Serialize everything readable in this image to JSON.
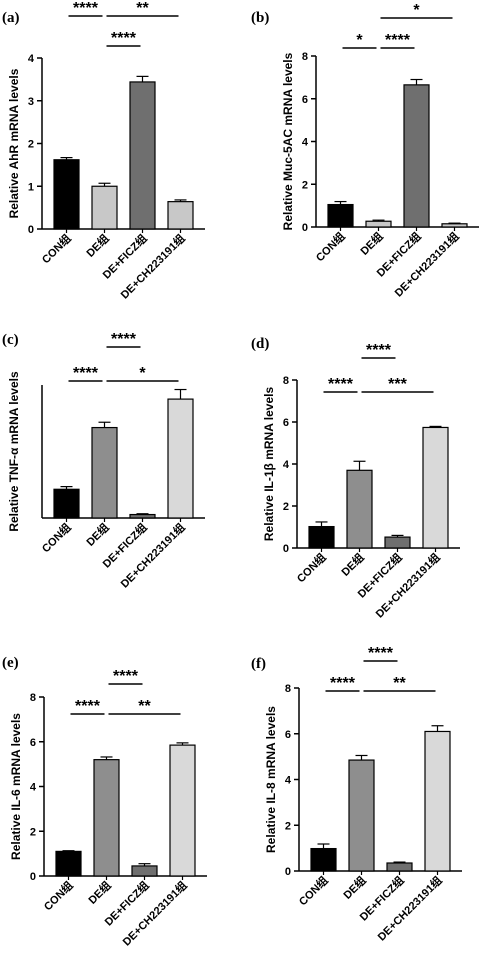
{
  "chart_data": [
    {
      "panel": "(a)",
      "type": "bar",
      "ylabel": "Relative AhR mRNA levels",
      "categories": [
        "CON组",
        "DE组",
        "DE+FICZ组",
        "DE+CH223191组"
      ],
      "values": [
        1.62,
        1.0,
        3.44,
        0.64
      ],
      "errors": [
        0.05,
        0.07,
        0.13,
        0.04
      ],
      "colors": [
        "#000000",
        "#c8c8c8",
        "#6f6f6f",
        "#c8c8c8"
      ],
      "ylim": [
        0,
        4
      ],
      "yticks": [
        "0",
        "1",
        "2",
        "3",
        "4"
      ],
      "significance": [
        {
          "from": 0,
          "to": 1,
          "label": "****",
          "row": 0
        },
        {
          "from": 1,
          "to": 3,
          "label": "**",
          "row": 0
        },
        {
          "from": 1,
          "to": 2,
          "label": "****",
          "row": 1
        }
      ]
    },
    {
      "panel": "(b)",
      "type": "bar",
      "ylabel": "Relative Muc-5AC mRNA levels",
      "categories": [
        "CON组",
        "DE组",
        "DE+FICZ组",
        "DE+CH223191组"
      ],
      "values": [
        1.05,
        0.27,
        6.65,
        0.15
      ],
      "errors": [
        0.14,
        0.05,
        0.25,
        0.03
      ],
      "colors": [
        "#000000",
        "#c8c8c8",
        "#6f6f6f",
        "#c8c8c8"
      ],
      "ylim": [
        0,
        8
      ],
      "yticks": [
        "0",
        "2",
        "4",
        "6",
        "8"
      ],
      "significance": [
        {
          "from": 1,
          "to": 3,
          "label": "*",
          "row": 0
        },
        {
          "from": 0,
          "to": 1,
          "label": "*",
          "row": 1
        },
        {
          "from": 1,
          "to": 2,
          "label": "****",
          "row": 1
        }
      ]
    },
    {
      "panel": "(c)",
      "type": "bar",
      "ylabel": "Relative TNF-α mRNA levels",
      "categories": [
        "CON组",
        "DE组",
        "DE+FICZ组",
        "DE+CH223191组"
      ],
      "values": [
        1.08,
        3.4,
        0.13,
        4.47
      ],
      "errors": [
        0.1,
        0.2,
        0.03,
        0.36
      ],
      "colors": [
        "#000000",
        "#8e8e8e",
        "#6f6f6f",
        "#d9d9d9"
      ],
      "ylim": [
        0,
        5
      ],
      "yticks": [],
      "significance": [
        {
          "from": 1,
          "to": 2,
          "label": "****",
          "row": 0
        },
        {
          "from": 0,
          "to": 1,
          "label": "****",
          "row": 1
        },
        {
          "from": 1,
          "to": 3,
          "label": "*",
          "row": 1
        }
      ]
    },
    {
      "panel": "(d)",
      "type": "bar",
      "ylabel": "Relative IL-1β mRNA levels",
      "categories": [
        "CON组",
        "DE组",
        "DE+FICZ组",
        "DE+CH223191组"
      ],
      "values": [
        1.02,
        3.7,
        0.52,
        5.74
      ],
      "errors": [
        0.22,
        0.43,
        0.08,
        0.05
      ],
      "colors": [
        "#000000",
        "#8e8e8e",
        "#6f6f6f",
        "#d9d9d9"
      ],
      "ylim": [
        0,
        8
      ],
      "yticks": [
        "0",
        "2",
        "4",
        "6",
        "8"
      ],
      "significance": [
        {
          "from": 1,
          "to": 2,
          "label": "****",
          "row": 0
        },
        {
          "from": 0,
          "to": 1,
          "label": "****",
          "row": 1
        },
        {
          "from": 1,
          "to": 3,
          "label": "***",
          "row": 1
        }
      ]
    },
    {
      "panel": "(e)",
      "type": "bar",
      "ylabel": "Relative IL-6 mRNA levels",
      "categories": [
        "CON组",
        "DE组",
        "DE+FICZ组",
        "DE+CH223191组"
      ],
      "values": [
        1.1,
        5.2,
        0.45,
        5.85
      ],
      "errors": [
        0.03,
        0.12,
        0.1,
        0.1
      ],
      "colors": [
        "#000000",
        "#8e8e8e",
        "#6f6f6f",
        "#d9d9d9"
      ],
      "ylim": [
        0,
        8
      ],
      "yticks": [
        "0",
        "2",
        "4",
        "6",
        "8"
      ],
      "significance": [
        {
          "from": 1,
          "to": 2,
          "label": "****",
          "row": 0
        },
        {
          "from": 0,
          "to": 1,
          "label": "****",
          "row": 1
        },
        {
          "from": 1,
          "to": 3,
          "label": "**",
          "row": 1
        }
      ]
    },
    {
      "panel": "(f)",
      "type": "bar",
      "ylabel": "Relative IL-8 mRNA levels",
      "categories": [
        "CON组",
        "DE组",
        "DE+FICZ组",
        "DE+CH223191组"
      ],
      "values": [
        0.98,
        4.85,
        0.35,
        6.1
      ],
      "errors": [
        0.2,
        0.2,
        0.04,
        0.25
      ],
      "colors": [
        "#000000",
        "#8e8e8e",
        "#6f6f6f",
        "#d9d9d9"
      ],
      "ylim": [
        0,
        8
      ],
      "yticks": [
        "0",
        "2",
        "4",
        "6",
        "8"
      ],
      "significance": [
        {
          "from": 1,
          "to": 2,
          "label": "****",
          "row": 0
        },
        {
          "from": 0,
          "to": 1,
          "label": "****",
          "row": 1
        },
        {
          "from": 1,
          "to": 3,
          "label": "**",
          "row": 1
        }
      ]
    }
  ]
}
